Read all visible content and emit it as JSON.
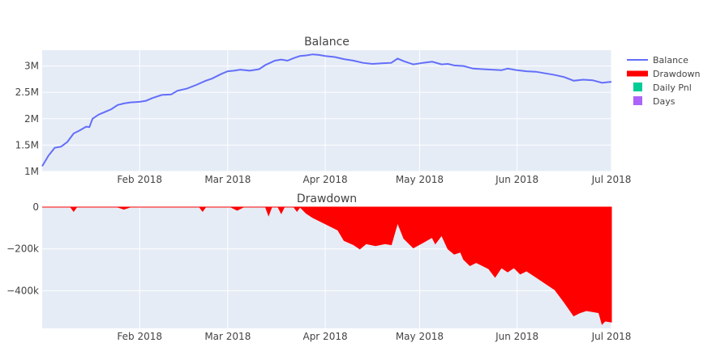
{
  "chart_data": {
    "type": "line",
    "legend": {
      "placement": "right",
      "entries": [
        {
          "name": "Balance",
          "color": "#636efa",
          "symbol": "line"
        },
        {
          "name": "Drawdown",
          "color": "#ff0000",
          "symbol": "thick-line"
        },
        {
          "name": "Daily Pnl",
          "color": "#00cc96",
          "symbol": "square"
        },
        {
          "name": "Days",
          "color": "#ab63fa",
          "symbol": "square"
        }
      ]
    },
    "x_tick_labels": [
      "Feb 2018",
      "Mar 2018",
      "Apr 2018",
      "May 2018",
      "Jun 2018",
      "Jul 2018"
    ],
    "x_tick_dates": [
      "2018-02-01",
      "2018-03-01",
      "2018-04-01",
      "2018-05-01",
      "2018-06-01",
      "2018-07-01"
    ],
    "xlim": [
      "2018-01-01",
      "2018-07-01"
    ],
    "balance": {
      "title": "Balance",
      "ylim": [
        1000000,
        3300000
      ],
      "y_ticks": [
        1000000,
        1500000,
        2000000,
        2500000,
        3000000
      ],
      "y_tick_labels": [
        "1M",
        "1.5M",
        "2M",
        "2.5M",
        "3M"
      ],
      "series": {
        "name": "Balance",
        "color": "#636efa",
        "points": [
          [
            "2018-01-01",
            1100000
          ],
          [
            "2018-01-03",
            1300000
          ],
          [
            "2018-01-05",
            1450000
          ],
          [
            "2018-01-07",
            1470000
          ],
          [
            "2018-01-09",
            1560000
          ],
          [
            "2018-01-11",
            1720000
          ],
          [
            "2018-01-13",
            1780000
          ],
          [
            "2018-01-15",
            1850000
          ],
          [
            "2018-01-16",
            1840000
          ],
          [
            "2018-01-17",
            2000000
          ],
          [
            "2018-01-19",
            2080000
          ],
          [
            "2018-01-21",
            2130000
          ],
          [
            "2018-01-23",
            2180000
          ],
          [
            "2018-01-25",
            2260000
          ],
          [
            "2018-01-27",
            2290000
          ],
          [
            "2018-01-29",
            2310000
          ],
          [
            "2018-02-01",
            2320000
          ],
          [
            "2018-02-03",
            2340000
          ],
          [
            "2018-02-05",
            2390000
          ],
          [
            "2018-02-08",
            2450000
          ],
          [
            "2018-02-11",
            2460000
          ],
          [
            "2018-02-13",
            2530000
          ],
          [
            "2018-02-16",
            2570000
          ],
          [
            "2018-02-19",
            2640000
          ],
          [
            "2018-02-22",
            2720000
          ],
          [
            "2018-02-24",
            2760000
          ],
          [
            "2018-02-27",
            2850000
          ],
          [
            "2018-03-01",
            2900000
          ],
          [
            "2018-03-03",
            2910000
          ],
          [
            "2018-03-05",
            2930000
          ],
          [
            "2018-03-08",
            2910000
          ],
          [
            "2018-03-11",
            2940000
          ],
          [
            "2018-03-13",
            3020000
          ],
          [
            "2018-03-16",
            3100000
          ],
          [
            "2018-03-18",
            3120000
          ],
          [
            "2018-03-20",
            3100000
          ],
          [
            "2018-03-22",
            3150000
          ],
          [
            "2018-03-24",
            3190000
          ],
          [
            "2018-03-26",
            3200000
          ],
          [
            "2018-03-28",
            3220000
          ],
          [
            "2018-03-30",
            3210000
          ],
          [
            "2018-04-01",
            3190000
          ],
          [
            "2018-04-04",
            3170000
          ],
          [
            "2018-04-07",
            3130000
          ],
          [
            "2018-04-10",
            3100000
          ],
          [
            "2018-04-13",
            3060000
          ],
          [
            "2018-04-16",
            3040000
          ],
          [
            "2018-04-19",
            3050000
          ],
          [
            "2018-04-22",
            3060000
          ],
          [
            "2018-04-24",
            3140000
          ],
          [
            "2018-04-26",
            3090000
          ],
          [
            "2018-04-29",
            3030000
          ],
          [
            "2018-05-02",
            3060000
          ],
          [
            "2018-05-05",
            3080000
          ],
          [
            "2018-05-08",
            3030000
          ],
          [
            "2018-05-10",
            3040000
          ],
          [
            "2018-05-12",
            3010000
          ],
          [
            "2018-05-15",
            3000000
          ],
          [
            "2018-05-18",
            2950000
          ],
          [
            "2018-05-21",
            2940000
          ],
          [
            "2018-05-24",
            2930000
          ],
          [
            "2018-05-27",
            2920000
          ],
          [
            "2018-05-29",
            2950000
          ],
          [
            "2018-06-01",
            2920000
          ],
          [
            "2018-06-04",
            2900000
          ],
          [
            "2018-06-07",
            2890000
          ],
          [
            "2018-06-10",
            2860000
          ],
          [
            "2018-06-13",
            2830000
          ],
          [
            "2018-06-16",
            2790000
          ],
          [
            "2018-06-19",
            2720000
          ],
          [
            "2018-06-22",
            2740000
          ],
          [
            "2018-06-25",
            2730000
          ],
          [
            "2018-06-28",
            2680000
          ],
          [
            "2018-07-01",
            2700000
          ]
        ]
      }
    },
    "drawdown": {
      "title": "Drawdown",
      "ylim": [
        -580000,
        0
      ],
      "y_ticks": [
        0,
        -200000,
        -400000
      ],
      "y_tick_labels": [
        "0",
        "−200k",
        "−400k"
      ],
      "series": {
        "name": "Drawdown",
        "type": "area",
        "color": "#ff0000",
        "points": [
          [
            "2018-01-01",
            0
          ],
          [
            "2018-01-10",
            0
          ],
          [
            "2018-01-11",
            -20000
          ],
          [
            "2018-01-12",
            0
          ],
          [
            "2018-01-25",
            0
          ],
          [
            "2018-01-27",
            -10000
          ],
          [
            "2018-01-29",
            0
          ],
          [
            "2018-02-20",
            0
          ],
          [
            "2018-02-21",
            -20000
          ],
          [
            "2018-02-22",
            0
          ],
          [
            "2018-03-02",
            0
          ],
          [
            "2018-03-04",
            -15000
          ],
          [
            "2018-03-06",
            0
          ],
          [
            "2018-03-13",
            0
          ],
          [
            "2018-03-14",
            -40000
          ],
          [
            "2018-03-15",
            0
          ],
          [
            "2018-03-17",
            0
          ],
          [
            "2018-03-18",
            -30000
          ],
          [
            "2018-03-19",
            0
          ],
          [
            "2018-03-22",
            0
          ],
          [
            "2018-03-23",
            -20000
          ],
          [
            "2018-03-24",
            0
          ],
          [
            "2018-03-26",
            -30000
          ],
          [
            "2018-03-28",
            -50000
          ],
          [
            "2018-04-01",
            -80000
          ],
          [
            "2018-04-05",
            -110000
          ],
          [
            "2018-04-07",
            -160000
          ],
          [
            "2018-04-10",
            -180000
          ],
          [
            "2018-04-12",
            -200000
          ],
          [
            "2018-04-14",
            -175000
          ],
          [
            "2018-04-17",
            -185000
          ],
          [
            "2018-04-20",
            -175000
          ],
          [
            "2018-04-22",
            -180000
          ],
          [
            "2018-04-24",
            -75000
          ],
          [
            "2018-04-26",
            -150000
          ],
          [
            "2018-04-29",
            -195000
          ],
          [
            "2018-05-02",
            -170000
          ],
          [
            "2018-05-05",
            -145000
          ],
          [
            "2018-05-06",
            -175000
          ],
          [
            "2018-05-08",
            -135000
          ],
          [
            "2018-05-10",
            -200000
          ],
          [
            "2018-05-12",
            -225000
          ],
          [
            "2018-05-14",
            -215000
          ],
          [
            "2018-05-15",
            -250000
          ],
          [
            "2018-05-17",
            -280000
          ],
          [
            "2018-05-19",
            -265000
          ],
          [
            "2018-05-21",
            -280000
          ],
          [
            "2018-05-23",
            -295000
          ],
          [
            "2018-05-25",
            -335000
          ],
          [
            "2018-05-27",
            -290000
          ],
          [
            "2018-05-29",
            -310000
          ],
          [
            "2018-05-31",
            -290000
          ],
          [
            "2018-06-02",
            -320000
          ],
          [
            "2018-06-04",
            -305000
          ],
          [
            "2018-06-07",
            -335000
          ],
          [
            "2018-06-10",
            -365000
          ],
          [
            "2018-06-13",
            -395000
          ],
          [
            "2018-06-16",
            -455000
          ],
          [
            "2018-06-19",
            -520000
          ],
          [
            "2018-06-21",
            -505000
          ],
          [
            "2018-06-23",
            -495000
          ],
          [
            "2018-06-25",
            -500000
          ],
          [
            "2018-06-27",
            -505000
          ],
          [
            "2018-06-28",
            -560000
          ],
          [
            "2018-06-29",
            -545000
          ],
          [
            "2018-07-01",
            -550000
          ]
        ]
      }
    }
  }
}
